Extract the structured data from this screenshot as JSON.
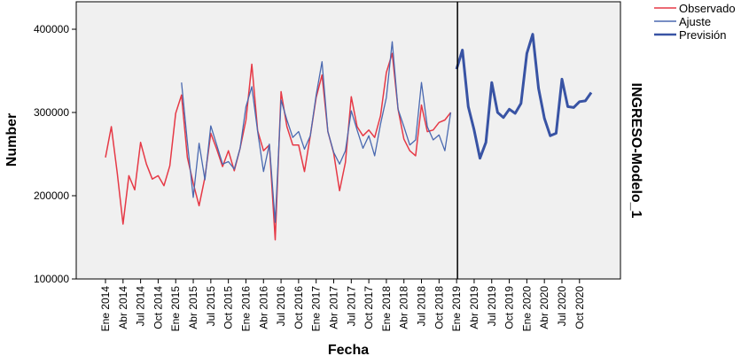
{
  "chart_data": {
    "type": "line",
    "title": "",
    "xlabel": "Fecha",
    "ylabel": "Number",
    "side_label": "INGRESO-Modelo_1",
    "ylim": [
      100000,
      433000
    ],
    "yticks": [
      100000,
      200000,
      300000,
      400000
    ],
    "xrange": [
      "2013-08",
      "2021-05"
    ],
    "xtick_labels": [
      "Ene 2014",
      "Abr 2014",
      "Jul 2014",
      "Oct 2014",
      "Ene 2015",
      "Abr 2015",
      "Jul 2015",
      "Oct 2015",
      "Ene 2016",
      "Abr 2016",
      "Jul 2016",
      "Oct 2016",
      "Ene 2017",
      "Abr 2017",
      "Jul 2017",
      "Oct 2017",
      "Ene 2018",
      "Abr 2018",
      "Jul 2018",
      "Oct 2018",
      "Ene 2019",
      "Abr 2019",
      "Jul 2019",
      "Oct 2019",
      "Ene 2020",
      "Abr 2020",
      "Jul 2020",
      "Oct 2020"
    ],
    "reference_line": "2019-01",
    "grid": false,
    "legend_position": "top-right",
    "background": "#f0f0f0",
    "series": [
      {
        "name": "Observado",
        "color": "#e63946",
        "start": "2014-01",
        "values": [
          246000,
          283000,
          228000,
          166000,
          224000,
          207000,
          264000,
          238000,
          220000,
          224000,
          212000,
          236000,
          299000,
          321000,
          246000,
          215000,
          188000,
          222000,
          275000,
          256000,
          235000,
          254000,
          230000,
          257000,
          291000,
          358000,
          278000,
          254000,
          261000,
          147000,
          325000,
          283000,
          261000,
          261000,
          229000,
          272000,
          318000,
          345000,
          277000,
          251000,
          206000,
          240000,
          319000,
          283000,
          272000,
          279000,
          270000,
          296000,
          348000,
          371000,
          304000,
          268000,
          254000,
          248000,
          309000,
          277000,
          279000,
          288000,
          291000,
          300000
        ]
      },
      {
        "name": "Ajuste",
        "color": "#4a69b0",
        "start": "2015-02",
        "values": [
          336000,
          264000,
          198000,
          263000,
          219000,
          284000,
          261000,
          238000,
          241000,
          232000,
          257000,
          307000,
          331000,
          277000,
          229000,
          262000,
          168000,
          315000,
          291000,
          270000,
          277000,
          256000,
          272000,
          321000,
          361000,
          277000,
          252000,
          238000,
          254000,
          302000,
          279000,
          257000,
          272000,
          248000,
          286000,
          318000,
          385000,
          304000,
          283000,
          261000,
          267000,
          336000,
          283000,
          267000,
          273000,
          254000,
          300000
        ]
      },
      {
        "name": "Previsión",
        "color": "#3853a4",
        "start": "2019-01",
        "values": [
          352000,
          375000,
          307000,
          279000,
          245000,
          264000,
          336000,
          300000,
          294000,
          304000,
          299000,
          311000,
          371000,
          394000,
          329000,
          293000,
          272000,
          275000,
          340000,
          307000,
          306000,
          313000,
          314000,
          324000
        ]
      }
    ]
  }
}
